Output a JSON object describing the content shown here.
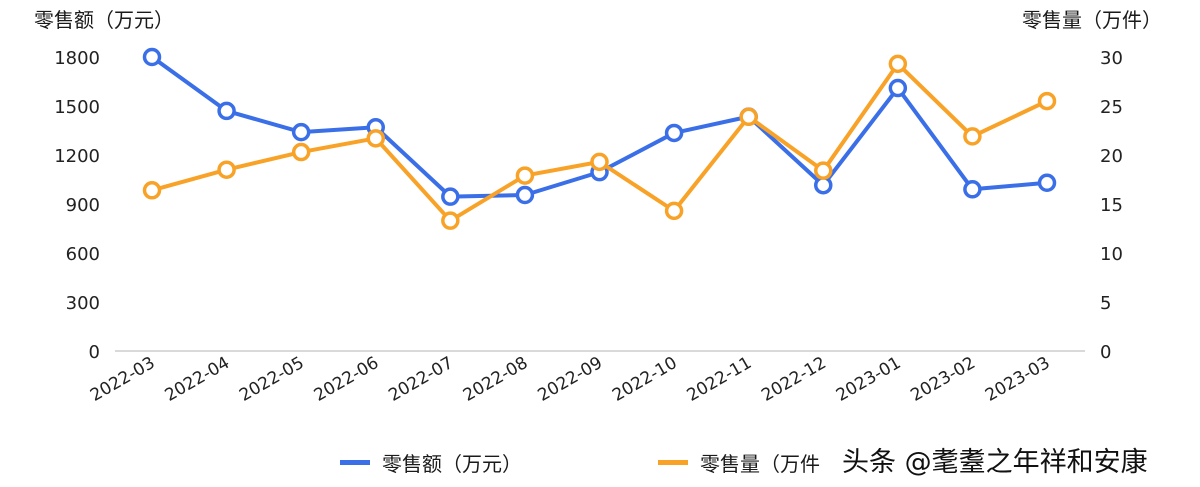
{
  "chart_data": {
    "type": "line",
    "title": "",
    "categories": [
      "2022-03",
      "2022-04",
      "2022-05",
      "2022-06",
      "2022-07",
      "2022-08",
      "2022-09",
      "2022-10",
      "2022-11",
      "2022-12",
      "2023-01",
      "2023-02",
      "2023-03"
    ],
    "series": [
      {
        "name": "零售额（万元）",
        "axis": "left",
        "color": "#3a6fe8",
        "values": [
          1800,
          1470,
          1340,
          1370,
          945,
          955,
          1095,
          1335,
          1435,
          1015,
          1610,
          990,
          1030
        ]
      },
      {
        "name": "零售量（万件）",
        "axis": "right",
        "color": "#f8a228",
        "values": [
          16.4,
          18.5,
          20.3,
          21.7,
          13.3,
          17.9,
          19.3,
          14.3,
          23.9,
          18.4,
          29.3,
          21.9,
          25.5
        ]
      }
    ],
    "ylabel_left": "零售额（万元）",
    "ylabel_right": "零售量（万件）",
    "ylim_left": [
      0,
      1800
    ],
    "ylim_right": [
      0,
      30
    ],
    "yticks_left": [
      0,
      300,
      600,
      900,
      1200,
      1500,
      1800
    ],
    "yticks_right": [
      0,
      5,
      10,
      15,
      20,
      25,
      30
    ],
    "grid": false,
    "legend_position": "bottom"
  },
  "axes": {
    "left_title": "零售额（万元）",
    "right_title": "零售量（万件）"
  },
  "legend": {
    "items": [
      {
        "label": "零售额（万元）",
        "color": "#3a6fe8"
      },
      {
        "label": "零售量（万件",
        "color": "#f8a228"
      }
    ]
  },
  "watermark": "头条 @耄耋之年祥和安康"
}
